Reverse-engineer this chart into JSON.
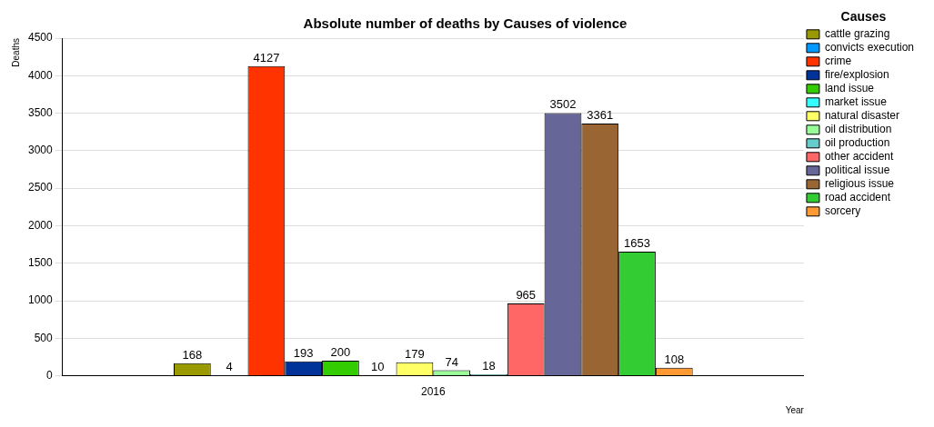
{
  "chart_data": {
    "type": "bar",
    "title": "Absolute number of deaths by Causes of violence",
    "xlabel": "Year",
    "ylabel": "Deaths",
    "legend_title": "Causes",
    "categories": [
      "2016"
    ],
    "series": [
      {
        "name": "cattle grazing",
        "color": "#999900",
        "values": [
          168
        ]
      },
      {
        "name": "convicts execution",
        "color": "#0099ff",
        "values": [
          4
        ]
      },
      {
        "name": "crime",
        "color": "#ff3300",
        "values": [
          4127
        ]
      },
      {
        "name": "fire/explosion",
        "color": "#003399",
        "values": [
          193
        ]
      },
      {
        "name": "land issue",
        "color": "#33cc00",
        "values": [
          200
        ]
      },
      {
        "name": "market issue",
        "color": "#33ffff",
        "values": [
          10
        ]
      },
      {
        "name": "natural disaster",
        "color": "#ffff66",
        "values": [
          179
        ]
      },
      {
        "name": "oil distribution",
        "color": "#99ff99",
        "values": [
          74
        ]
      },
      {
        "name": "oil production",
        "color": "#66cccc",
        "values": [
          18
        ]
      },
      {
        "name": "other accident",
        "color": "#ff6666",
        "values": [
          965
        ]
      },
      {
        "name": "political issue",
        "color": "#666699",
        "values": [
          3502
        ]
      },
      {
        "name": "religious issue",
        "color": "#996633",
        "values": [
          3361
        ]
      },
      {
        "name": "road accident",
        "color": "#33cc33",
        "values": [
          1653
        ]
      },
      {
        "name": "sorcery",
        "color": "#ff9933",
        "values": [
          108
        ]
      }
    ],
    "ylim": [
      0,
      4500
    ],
    "yticks": [
      0,
      500,
      1000,
      1500,
      2000,
      2500,
      3000,
      3500,
      4000,
      4500
    ],
    "grid": "y",
    "legend": "top right",
    "data_labels": true
  }
}
